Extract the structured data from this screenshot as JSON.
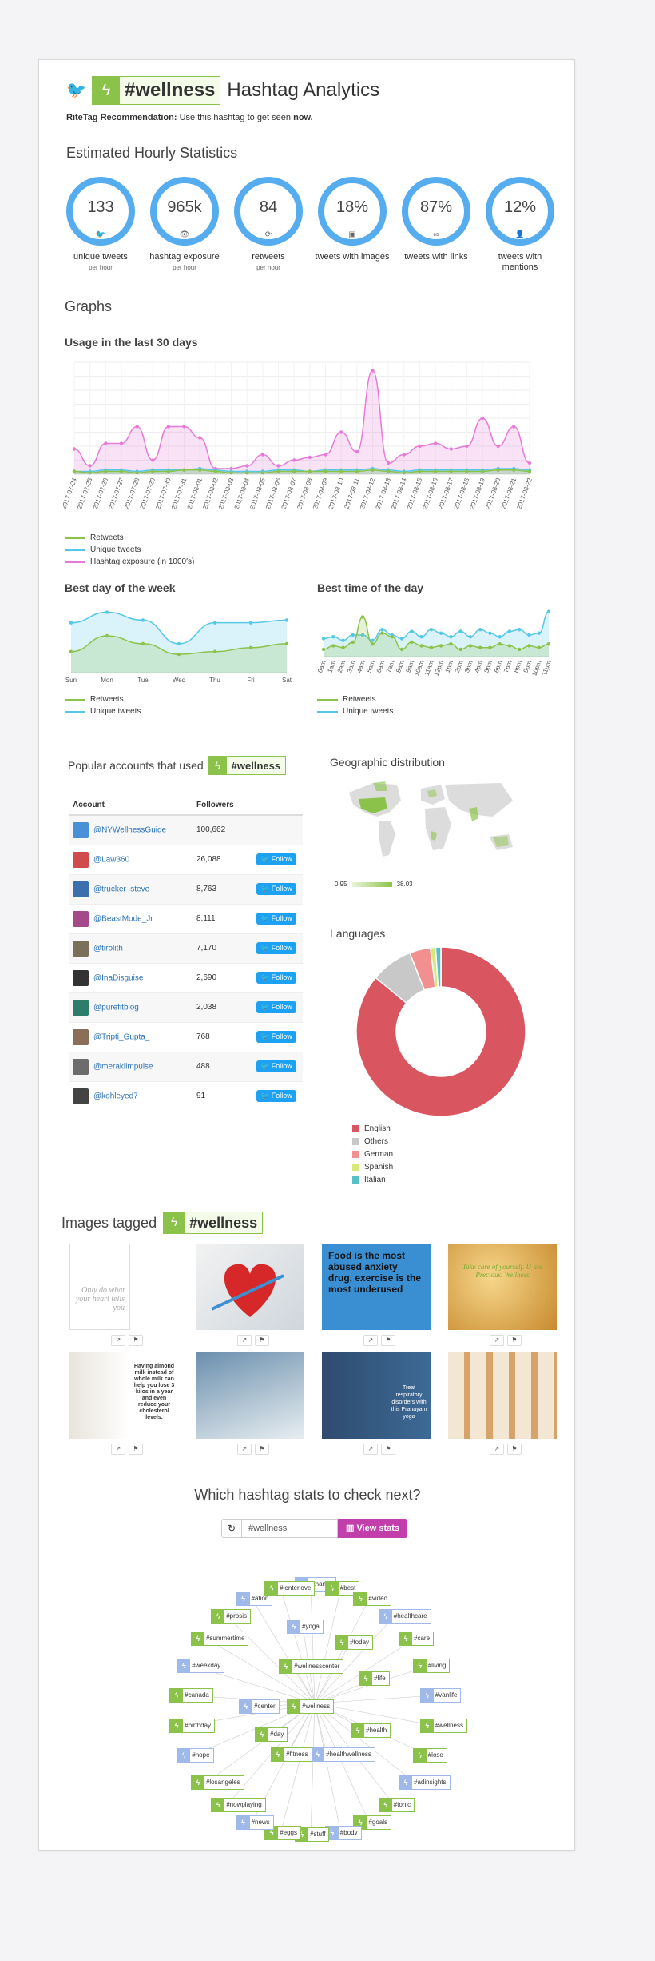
{
  "header": {
    "hashtag": "#wellness",
    "title_suffix": "Hashtag Analytics",
    "reco_label": "RiteTag Recommendation:",
    "reco_text": "Use this hashtag to get seen",
    "reco_strong": "now."
  },
  "stats": {
    "heading": "Estimated Hourly Statistics",
    "items": [
      {
        "value": "133",
        "label": "unique tweets",
        "sub": "per hour",
        "icon": "twitter-bird-icon",
        "glyph": "🐦"
      },
      {
        "value": "965k",
        "label": "hashtag exposure",
        "sub": "per hour",
        "icon": "eye-icon",
        "glyph": "👁"
      },
      {
        "value": "84",
        "label": "retweets",
        "sub": "per hour",
        "icon": "retweet-icon",
        "glyph": "⟳"
      },
      {
        "value": "18%",
        "label": "tweets with images",
        "sub": "",
        "icon": "image-icon",
        "glyph": "▣"
      },
      {
        "value": "87%",
        "label": "tweets with links",
        "sub": "",
        "icon": "link-icon",
        "glyph": "∞"
      },
      {
        "value": "12%",
        "label": "tweets with mentions",
        "sub": "",
        "icon": "user-icon",
        "glyph": "👤"
      }
    ]
  },
  "graphs": {
    "heading": "Graphs",
    "usage_title": "Usage in the last 30 days",
    "week_title": "Best day of the week",
    "time_title": "Best time of the day"
  },
  "chart_data": [
    {
      "type": "area",
      "title": "Usage in the last 30 days",
      "categories": [
        "2017-07-24",
        "2017-07-25",
        "2017-07-26",
        "2017-07-27",
        "2017-07-28",
        "2017-07-29",
        "2017-07-30",
        "2017-07-31",
        "2017-08-01",
        "2017-08-02",
        "2017-08-03",
        "2017-08-04",
        "2017-08-05",
        "2017-08-06",
        "2017-08-07",
        "2017-08-08",
        "2017-08-09",
        "2017-08-10",
        "2017-08-11",
        "2017-08-12",
        "2017-08-13",
        "2017-08-14",
        "2017-08-15",
        "2017-08-16",
        "2017-08-17",
        "2017-08-18",
        "2017-08-19",
        "2017-08-20",
        "2017-08-21",
        "2017-08-22"
      ],
      "series": [
        {
          "name": "Retweets",
          "color": "#8bc34a",
          "values": [
            2,
            1,
            2,
            2,
            1,
            2,
            2,
            3,
            3,
            2,
            1,
            1,
            1,
            2,
            2,
            2,
            2,
            2,
            2,
            3,
            2,
            1,
            2,
            2,
            2,
            2,
            2,
            3,
            3,
            2
          ]
        },
        {
          "name": "Unique tweets",
          "color": "#55c8e8",
          "values": [
            2,
            2,
            3,
            3,
            2,
            3,
            3,
            3,
            4,
            3,
            2,
            2,
            2,
            3,
            3,
            2,
            3,
            3,
            3,
            4,
            3,
            2,
            3,
            3,
            3,
            3,
            3,
            4,
            4,
            3
          ]
        },
        {
          "name": "Hashtag exposure (in 1000's)",
          "color": "#e879d8",
          "values": [
            18,
            6,
            22,
            22,
            34,
            10,
            34,
            34,
            26,
            4,
            4,
            6,
            14,
            6,
            10,
            12,
            14,
            30,
            16,
            74,
            8,
            14,
            20,
            22,
            18,
            20,
            40,
            20,
            34,
            8
          ]
        }
      ],
      "ylim": [
        0,
        80
      ]
    },
    {
      "type": "area",
      "title": "Best day of the week",
      "categories": [
        "Sun",
        "Mon",
        "Tue",
        "Wed",
        "Thu",
        "Fri",
        "Sat"
      ],
      "series": [
        {
          "name": "Retweets",
          "color": "#8bc34a",
          "values": [
            16,
            28,
            22,
            14,
            16,
            19,
            22
          ]
        },
        {
          "name": "Unique tweets",
          "color": "#55c8e8",
          "values": [
            38,
            46,
            40,
            22,
            38,
            38,
            40
          ]
        }
      ],
      "ylim": [
        0,
        50
      ]
    },
    {
      "type": "area",
      "title": "Best time of the day",
      "categories": [
        "0am",
        "1am",
        "2am",
        "3am",
        "4am",
        "5am",
        "6am",
        "7am",
        "8am",
        "9am",
        "10am",
        "11am",
        "12pm",
        "1pm",
        "2pm",
        "3pm",
        "4pm",
        "5pm",
        "6pm",
        "7pm",
        "8pm",
        "9pm",
        "10pm",
        "11pm"
      ],
      "series": [
        {
          "name": "Retweets",
          "color": "#8bc34a",
          "values": [
            8,
            12,
            10,
            16,
            44,
            14,
            26,
            22,
            8,
            16,
            12,
            10,
            12,
            14,
            8,
            12,
            10,
            10,
            14,
            12,
            8,
            12,
            10,
            14
          ]
        },
        {
          "name": "Unique tweets",
          "color": "#55c8e8",
          "values": [
            20,
            22,
            18,
            24,
            24,
            18,
            30,
            24,
            20,
            28,
            22,
            30,
            26,
            22,
            28,
            22,
            30,
            26,
            22,
            28,
            30,
            24,
            26,
            50
          ]
        }
      ],
      "ylim": [
        0,
        55
      ]
    },
    {
      "type": "pie",
      "title": "Languages",
      "categories": [
        "English",
        "Others",
        "German",
        "Spanish",
        "Italian"
      ],
      "values": [
        86,
        8,
        4,
        1,
        1
      ],
      "colors": [
        "#d9555f",
        "#c8c8c8",
        "#f28f8f",
        "#d6ea7a",
        "#55c0c8"
      ]
    }
  ],
  "popular": {
    "heading": "Popular accounts that used",
    "col_account": "Account",
    "col_followers": "Followers",
    "follow_label": "Follow",
    "rows": [
      {
        "name": "@NYWellnessGuide",
        "followers": "100,662",
        "follow": false
      },
      {
        "name": "@Law360",
        "followers": "26,088",
        "follow": true
      },
      {
        "name": "@trucker_steve",
        "followers": "8,763",
        "follow": true
      },
      {
        "name": "@BeastMode_Jr",
        "followers": "8,111",
        "follow": true
      },
      {
        "name": "@tirolith",
        "followers": "7,170",
        "follow": true
      },
      {
        "name": "@InaDisguise",
        "followers": "2,690",
        "follow": true
      },
      {
        "name": "@purefitblog",
        "followers": "2,038",
        "follow": true
      },
      {
        "name": "@Tripti_Gupta_",
        "followers": "768",
        "follow": true
      },
      {
        "name": "@merakiimpulse",
        "followers": "488",
        "follow": true
      },
      {
        "name": "@kohleyed7",
        "followers": "91",
        "follow": true
      }
    ]
  },
  "geo": {
    "heading": "Geographic distribution",
    "min": "0.95",
    "max": "38.03"
  },
  "languages": {
    "heading": "Languages"
  },
  "images": {
    "heading": "Images tagged",
    "captions": [
      "Only do what your heart tells you",
      "",
      "Food is the most abused anxiety drug, exercise is the most underused",
      "Take care of yourself. U are Precious. Wellness",
      "Having almond milk instead of whole milk can help you lose 3 kilos in a year and even reduce your cholesterol levels.",
      "",
      "Treat respiratory disorders with this Pranayam yoga",
      ""
    ]
  },
  "next": {
    "heading": "Which hashtag stats to check next?",
    "input_value": "#wellness",
    "button": "View stats"
  },
  "graph_nodes": [
    "#wellness",
    "#healthwellness",
    "#fitness",
    "#health",
    "#center",
    "#wellnesscenter",
    "#day",
    "#yoga",
    "#today",
    "#life",
    "#thanks",
    "#best",
    "#video",
    "#healthcare",
    "#care",
    "#living",
    "#vanlife",
    "#wellness",
    "#lose",
    "#adinsights",
    "#tonic",
    "#goals",
    "#body",
    "#stuff",
    "#eggs",
    "#news",
    "#nowplaying",
    "#losangeles",
    "#hope",
    "#birthday",
    "#canada",
    "#weekday",
    "#summertime",
    "#prosis",
    "#ation",
    "#lenterlove"
  ]
}
